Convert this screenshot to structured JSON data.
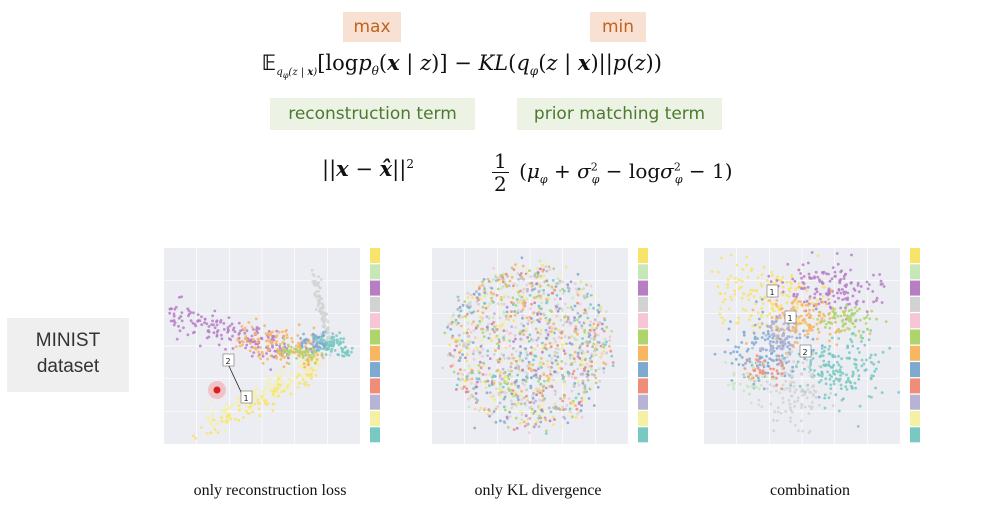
{
  "objective": {
    "max_label": "max",
    "min_label": "min",
    "reconstruction_term_label": "reconstruction term",
    "prior_term_label": "prior matching term"
  },
  "dataset_label_line1": "MINIST",
  "dataset_label_line2": "dataset",
  "panels": [
    {
      "caption": "only reconstruction loss",
      "annotations": [
        "2",
        "1"
      ]
    },
    {
      "caption": "only KL divergence",
      "annotations": []
    },
    {
      "caption": "combination",
      "annotations": [
        "1",
        "1",
        "2"
      ]
    }
  ],
  "colors": {
    "class_palette": [
      "#77c9c1",
      "#f4f1a5",
      "#b7b3d4",
      "#f08d78",
      "#7ea9d1",
      "#f8b562",
      "#aed56c",
      "#f6c6d6",
      "#d2d2d2",
      "#b77ec4",
      "#c8e7b9",
      "#f8e46a"
    ],
    "plot_bg": "#ececf3"
  }
}
